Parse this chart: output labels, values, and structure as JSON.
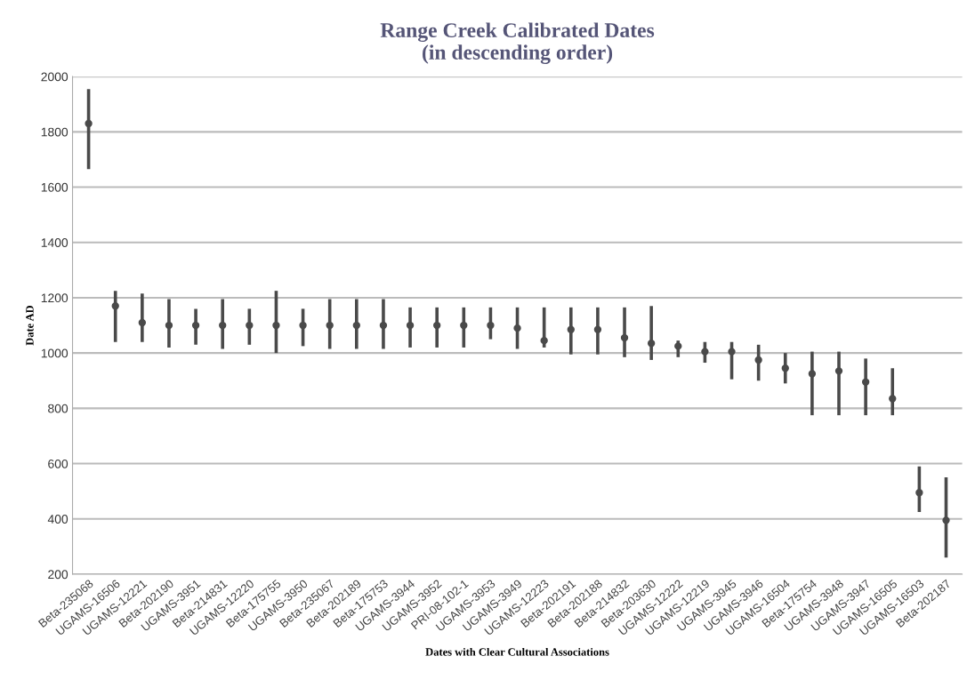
{
  "chart_data": {
    "type": "scatter",
    "title": "Range Creek Calibrated Dates\n(in descending order)",
    "xlabel": "Dates with Clear Cultural Associations",
    "ylabel": "Date AD",
    "categories": [
      "Beta-235068",
      "UGAMS-16506",
      "UGAMS-12221",
      "Beta-202190",
      "UGAMS-3951",
      "Beta-214831",
      "UGAMS-12220",
      "Beta-175755",
      "UGAMS-3950",
      "Beta-235067",
      "Beta-202189",
      "Beta-175753",
      "UGAMS-3944",
      "UGAMS-3952",
      "PRI-08-102-1",
      "UGAMS-3953",
      "UGAMS-3949",
      "UGAMS-12223",
      "Beta-202191",
      "Beta-202188",
      "Beta-214832",
      "Beta-203630",
      "UGAMS-12222",
      "UGAMS-12219",
      "UGAMS-3945",
      "UGAMS-3946",
      "UGAMS-16504",
      "Beta-175754",
      "UGAMS-3948",
      "UGAMS-3947",
      "UGAMS-16505",
      "UGAMS-16503",
      "Beta-202187"
    ],
    "values": [
      1830,
      1170,
      1110,
      1100,
      1100,
      1100,
      1100,
      1100,
      1100,
      1100,
      1100,
      1100,
      1100,
      1100,
      1100,
      1100,
      1090,
      1045,
      1085,
      1085,
      1055,
      1035,
      1025,
      1005,
      1005,
      975,
      945,
      925,
      935,
      895,
      835,
      495,
      395
    ],
    "errors": [
      [
        1665,
        1955
      ],
      [
        1040,
        1225
      ],
      [
        1040,
        1215
      ],
      [
        1020,
        1195
      ],
      [
        1030,
        1160
      ],
      [
        1015,
        1195
      ],
      [
        1030,
        1160
      ],
      [
        1000,
        1225
      ],
      [
        1025,
        1160
      ],
      [
        1015,
        1195
      ],
      [
        1015,
        1195
      ],
      [
        1015,
        1195
      ],
      [
        1020,
        1165
      ],
      [
        1020,
        1165
      ],
      [
        1020,
        1165
      ],
      [
        1050,
        1165
      ],
      [
        1015,
        1165
      ],
      [
        1020,
        1165
      ],
      [
        995,
        1165
      ],
      [
        995,
        1165
      ],
      [
        985,
        1165
      ],
      [
        975,
        1170
      ],
      [
        985,
        1045
      ],
      [
        965,
        1040
      ],
      [
        905,
        1040
      ],
      [
        900,
        1030
      ],
      [
        890,
        1000
      ],
      [
        775,
        1005
      ],
      [
        775,
        1005
      ],
      [
        775,
        980
      ],
      [
        775,
        945
      ],
      [
        425,
        590
      ],
      [
        260,
        550
      ]
    ],
    "color": "#4a4a4a",
    "marker": "circle",
    "ylim": [
      200,
      2000
    ],
    "yticks": [
      200,
      400,
      600,
      800,
      1000,
      1200,
      1400,
      1600,
      1800,
      2000
    ],
    "grid": "y",
    "legend": false
  }
}
